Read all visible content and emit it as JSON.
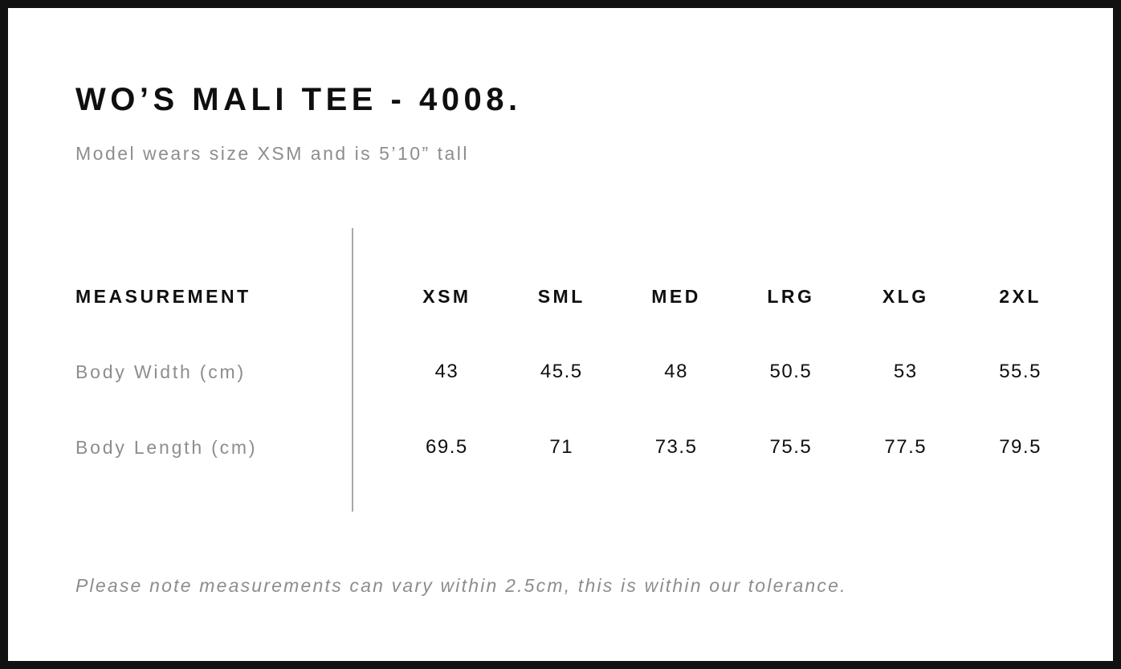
{
  "header": {
    "title": "WO’S MALI TEE - 4008.",
    "subtitle": "Model wears size XSM and is 5’10” tall"
  },
  "table": {
    "measurement_header": "MEASUREMENT",
    "columns": [
      "XSM",
      "SML",
      "MED",
      "LRG",
      "XLG",
      "2XL"
    ],
    "rows": [
      {
        "label": "Body Width (cm)",
        "values": [
          "43",
          "45.5",
          "48",
          "50.5",
          "53",
          "55.5"
        ]
      },
      {
        "label": "Body Length (cm)",
        "values": [
          "69.5",
          "71",
          "73.5",
          "75.5",
          "77.5",
          "79.5"
        ]
      }
    ]
  },
  "footer": {
    "note": "Please note measurements can vary within 2.5cm, this is within our tolerance."
  },
  "chart_data": {
    "type": "table",
    "title": "WO’S MALI TEE - 4008.",
    "columns": [
      "MEASUREMENT",
      "XSM",
      "SML",
      "MED",
      "LRG",
      "XLG",
      "2XL"
    ],
    "rows": [
      [
        "Body Width (cm)",
        43,
        45.5,
        48,
        50.5,
        53,
        55.5
      ],
      [
        "Body Length (cm)",
        69.5,
        71,
        73.5,
        75.5,
        77.5,
        79.5
      ]
    ]
  },
  "colors": {
    "frame_border": "#111111",
    "text_primary": "#0f0f0f",
    "text_muted": "#8d8d8d",
    "divider": "#a8a8a8",
    "background": "#ffffff"
  }
}
